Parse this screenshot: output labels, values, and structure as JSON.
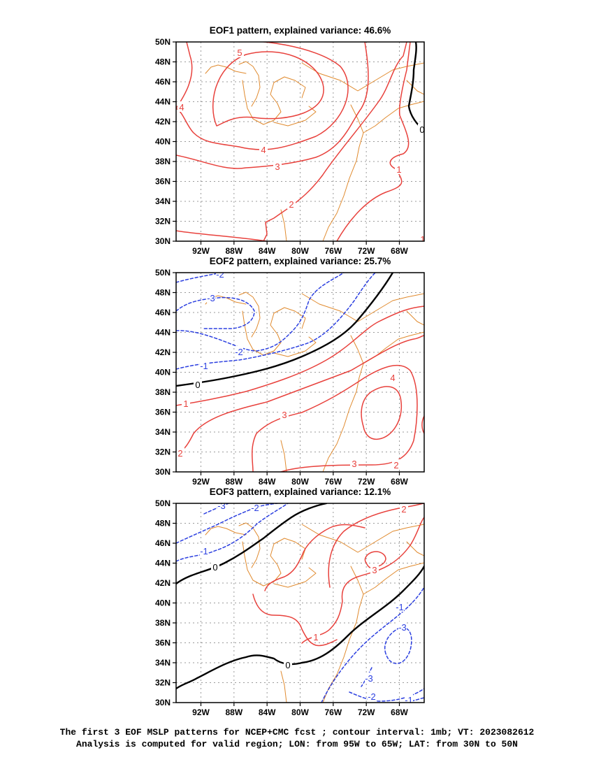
{
  "chart_data": [
    {
      "type": "contour",
      "title": "EOF1 pattern, explained variance: 46.6%",
      "x_ticks": [
        "92W",
        "88W",
        "84W",
        "80W",
        "76W",
        "72W",
        "68W"
      ],
      "y_ticks": [
        "50N",
        "48N",
        "46N",
        "44N",
        "42N",
        "40N",
        "38N",
        "36N",
        "34N",
        "32N",
        "30N"
      ],
      "xlim_deg_east": [
        -95,
        -65
      ],
      "ylim_deg_north": [
        30,
        50
      ],
      "grid": true,
      "contour_levels": [
        {
          "level": 5,
          "label": "5",
          "sign": "positive"
        },
        {
          "level": 4,
          "label": "4",
          "sign": "positive"
        },
        {
          "level": 3,
          "label": "3",
          "sign": "positive"
        },
        {
          "level": 2,
          "label": "2",
          "sign": "positive"
        },
        {
          "level": 1,
          "label": "1",
          "sign": "positive"
        },
        {
          "level": 0,
          "label": "0",
          "sign": "zero"
        }
      ]
    },
    {
      "type": "contour",
      "title": "EOF2 pattern, explained variance: 25.7%",
      "x_ticks": [
        "92W",
        "88W",
        "84W",
        "80W",
        "76W",
        "72W",
        "68W"
      ],
      "y_ticks": [
        "50N",
        "48N",
        "46N",
        "44N",
        "42N",
        "40N",
        "38N",
        "36N",
        "34N",
        "32N",
        "30N"
      ],
      "xlim_deg_east": [
        -95,
        -65
      ],
      "ylim_deg_north": [
        30,
        50
      ],
      "grid": true,
      "contour_levels": [
        {
          "level": -3,
          "label": "-3",
          "sign": "negative"
        },
        {
          "level": -2,
          "label": "-2",
          "sign": "negative"
        },
        {
          "level": -1,
          "label": "-1",
          "sign": "negative"
        },
        {
          "level": 0,
          "label": "0",
          "sign": "zero"
        },
        {
          "level": 1,
          "label": "1",
          "sign": "positive"
        },
        {
          "level": 2,
          "label": "2",
          "sign": "positive"
        },
        {
          "level": 3,
          "label": "3",
          "sign": "positive"
        },
        {
          "level": 4,
          "label": "4",
          "sign": "positive"
        }
      ]
    },
    {
      "type": "contour",
      "title": "EOF3 pattern, explained variance: 12.1%",
      "x_ticks": [
        "92W",
        "88W",
        "84W",
        "80W",
        "76W",
        "72W",
        "68W"
      ],
      "y_ticks": [
        "50N",
        "48N",
        "46N",
        "44N",
        "42N",
        "40N",
        "38N",
        "36N",
        "34N",
        "32N",
        "30N"
      ],
      "xlim_deg_east": [
        -95,
        -65
      ],
      "ylim_deg_north": [
        30,
        50
      ],
      "grid": true,
      "contour_levels": [
        {
          "level": -3,
          "label": "-3",
          "sign": "negative"
        },
        {
          "level": -2,
          "label": "-2",
          "sign": "negative"
        },
        {
          "level": -1,
          "label": "-1",
          "sign": "negative"
        },
        {
          "level": 0,
          "label": "0",
          "sign": "zero"
        },
        {
          "level": 1,
          "label": "1",
          "sign": "positive"
        },
        {
          "level": 2,
          "label": "2",
          "sign": "positive"
        },
        {
          "level": 3,
          "label": "3",
          "sign": "positive"
        }
      ]
    }
  ],
  "caption": {
    "line1": "The first 3 EOF MSLP patterns for NCEP+CMC fcst ; contour interval: 1mb; VT: 2023082612",
    "line2": "Analysis is computed for valid region; LON: from 95W to 65W; LAT: from 30N to 50N"
  },
  "colors": {
    "positive": "#e8413c",
    "negative": "#2b3fe0",
    "zero": "#000000",
    "coast": "#e08a2e",
    "grid": "#9a9a9a"
  }
}
